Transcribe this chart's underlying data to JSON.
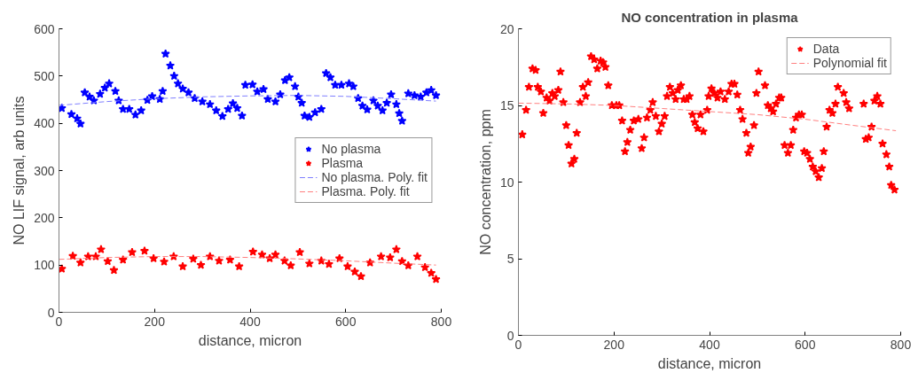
{
  "chart_data": [
    {
      "type": "scatter",
      "xlabel": "distance, micron",
      "ylabel": "NO LIF signal, arb units",
      "xlim": [
        0,
        800
      ],
      "ylim": [
        0,
        600
      ],
      "xticks": [
        0,
        200,
        400,
        600,
        800
      ],
      "yticks": [
        0,
        100,
        200,
        300,
        400,
        500,
        600
      ],
      "grid": false,
      "legend": "right",
      "series": [
        {
          "name": "No plasma",
          "marker": "star",
          "color": "#0000ff",
          "x": [
            6,
            26,
            38,
            45,
            54,
            64,
            73,
            86,
            96,
            105,
            118,
            125,
            134,
            147,
            160,
            172,
            185,
            195,
            211,
            217,
            223,
            233,
            241,
            249,
            259,
            271,
            284,
            300,
            316,
            329,
            342,
            354,
            364,
            373,
            383,
            390,
            405,
            415,
            428,
            437,
            453,
            463,
            473,
            482,
            494,
            501,
            508,
            514,
            524,
            536,
            549,
            559,
            568,
            578,
            591,
            607,
            616,
            626,
            635,
            645,
            658,
            667,
            677,
            686,
            695,
            706,
            712,
            718,
            731,
            744,
            757,
            769,
            779,
            789
          ],
          "values": [
            432,
            419,
            410,
            399,
            465,
            456,
            448,
            462,
            475,
            484,
            468,
            448,
            430,
            430,
            418,
            427,
            449,
            457,
            451,
            468,
            547,
            522,
            500,
            484,
            473,
            465,
            453,
            446,
            440,
            427,
            415,
            430,
            442,
            432,
            416,
            481,
            482,
            467,
            472,
            451,
            446,
            461,
            491,
            497,
            478,
            456,
            443,
            416,
            413,
            423,
            430,
            506,
            497,
            481,
            481,
            484,
            478,
            453,
            437,
            429,
            448,
            437,
            427,
            443,
            461,
            440,
            421,
            405,
            463,
            459,
            456,
            465,
            470,
            459
          ]
        },
        {
          "name": "Plasma",
          "marker": "star",
          "color": "#ff0000",
          "x": [
            6,
            29,
            45,
            61,
            77,
            88,
            102,
            115,
            134,
            153,
            179,
            198,
            220,
            240,
            259,
            281,
            297,
            316,
            335,
            358,
            377,
            406,
            425,
            441,
            453,
            472,
            485,
            504,
            524,
            549,
            565,
            587,
            604,
            619,
            632,
            651,
            674,
            693,
            706,
            718,
            731,
            750,
            766,
            779,
            789
          ],
          "values": [
            92,
            119,
            105,
            118,
            118,
            133,
            108,
            89,
            111,
            127,
            130,
            114,
            107,
            118,
            97,
            113,
            100,
            118,
            109,
            111,
            97,
            128,
            122,
            114,
            122,
            109,
            99,
            127,
            103,
            109,
            102,
            114,
            97,
            86,
            76,
            105,
            118,
            116,
            133,
            108,
            99,
            118,
            95,
            83,
            70
          ]
        },
        {
          "name": "No plasma. Poly. fit",
          "type": "line",
          "marker": "none",
          "line_style": "dashed",
          "color": "#7f7fff",
          "x": [
            0,
            100,
            200,
            300,
            400,
            500,
            600,
            700,
            789
          ],
          "values": [
            438,
            446,
            452,
            456,
            458,
            459,
            457,
            452,
            447
          ]
        },
        {
          "name": "Plasma. Poly. fit",
          "type": "line",
          "marker": "none",
          "line_style": "dashed",
          "color": "#ff7f7f",
          "x": [
            0,
            100,
            200,
            300,
            400,
            500,
            600,
            700,
            789
          ],
          "values": [
            112,
            116,
            118,
            118,
            116,
            113,
            109,
            104,
            100
          ]
        }
      ]
    },
    {
      "type": "scatter",
      "title": "NO concentration in plasma",
      "xlabel": "distance, micron",
      "ylabel": "NO concentration, ppm",
      "xlim": [
        0,
        800
      ],
      "ylim": [
        0,
        20
      ],
      "xticks": [
        0,
        200,
        400,
        600,
        800
      ],
      "yticks": [
        0,
        5,
        10,
        15,
        20
      ],
      "grid": false,
      "legend": "top right",
      "series": [
        {
          "name": "Data",
          "marker": "star",
          "color": "#ff0000",
          "x": [
            8,
            16,
            22,
            29.5,
            36,
            40.5,
            47,
            52,
            59,
            65,
            71,
            76,
            83.5,
            88,
            94,
            100,
            105,
            111,
            117,
            122,
            129,
            135,
            141,
            146,
            152,
            158.5,
            165,
            172,
            177,
            182,
            188,
            195.5,
            205,
            211,
            217,
            223,
            228,
            234,
            241.5,
            251,
            258,
            263,
            269,
            276,
            281,
            287.5,
            294,
            300,
            306,
            311,
            317,
            323,
            329,
            333.5,
            340,
            346,
            352,
            358,
            364,
            369,
            375,
            381,
            387,
            395,
            398,
            404,
            410,
            416.5,
            423,
            432,
            440,
            446,
            452,
            458,
            464,
            469,
            477,
            481,
            486,
            493,
            498,
            502.5,
            516,
            522,
            528,
            533,
            539,
            545.6,
            550,
            557,
            564,
            570,
            575,
            581,
            587,
            593,
            598,
            604,
            610,
            616,
            622,
            628.5,
            635,
            639,
            645,
            651,
            657,
            663.5,
            668.5,
            680.7,
            686,
            692,
            722.5,
            727,
            733,
            739,
            745,
            751,
            757.5,
            762,
            770,
            776,
            780,
            787
          ],
          "values": [
            13.1,
            14.7,
            16.2,
            17.4,
            17.3,
            16.2,
            15.9,
            14.5,
            15.5,
            15.3,
            15.8,
            15.6,
            16.0,
            17.2,
            15.2,
            13.7,
            12.4,
            11.2,
            11.5,
            13.2,
            15.2,
            16.2,
            15.6,
            16.5,
            18.2,
            18.0,
            17.4,
            17.9,
            17.8,
            17.5,
            16.3,
            15.0,
            15.0,
            15.0,
            14.0,
            12.0,
            12.6,
            13.4,
            14.0,
            14.1,
            12.2,
            12.9,
            14.2,
            14.7,
            15.2,
            14.3,
            13.3,
            13.8,
            14.3,
            15.6,
            16.2,
            15.8,
            15.4,
            16.0,
            16.3,
            15.4,
            15.4,
            15.6,
            14.4,
            13.9,
            13.5,
            14.4,
            13.3,
            14.7,
            15.6,
            16.1,
            15.8,
            15.5,
            15.9,
            15.4,
            15.9,
            16.4,
            16.4,
            15.7,
            14.7,
            14.1,
            13.2,
            11.9,
            12.3,
            13.7,
            15.8,
            17.2,
            16.3,
            15.0,
            14.8,
            14.6,
            15.1,
            15.5,
            15.5,
            12.4,
            11.9,
            12.4,
            13.4,
            14.2,
            14.4,
            14.4,
            12.0,
            11.9,
            11.5,
            11.0,
            10.7,
            10.3,
            10.9,
            12.0,
            13.6,
            14.7,
            14.5,
            15.1,
            16.2,
            15.8,
            15.2,
            14.8,
            15.1,
            12.8,
            12.9,
            13.6,
            15.3,
            15.6,
            15.1,
            12.5,
            11.8,
            11.0,
            9.8,
            9.5
          ]
        },
        {
          "name": "Polynomial fit",
          "type": "line",
          "marker": "none",
          "line_style": "dashed",
          "color": "#ff7f7f",
          "x": [
            0,
            100,
            200,
            300,
            400,
            500,
            600,
            700,
            790
          ],
          "values": [
            15.15,
            15.1,
            15.0,
            14.8,
            14.6,
            14.4,
            14.1,
            13.7,
            13.35
          ]
        }
      ]
    }
  ]
}
